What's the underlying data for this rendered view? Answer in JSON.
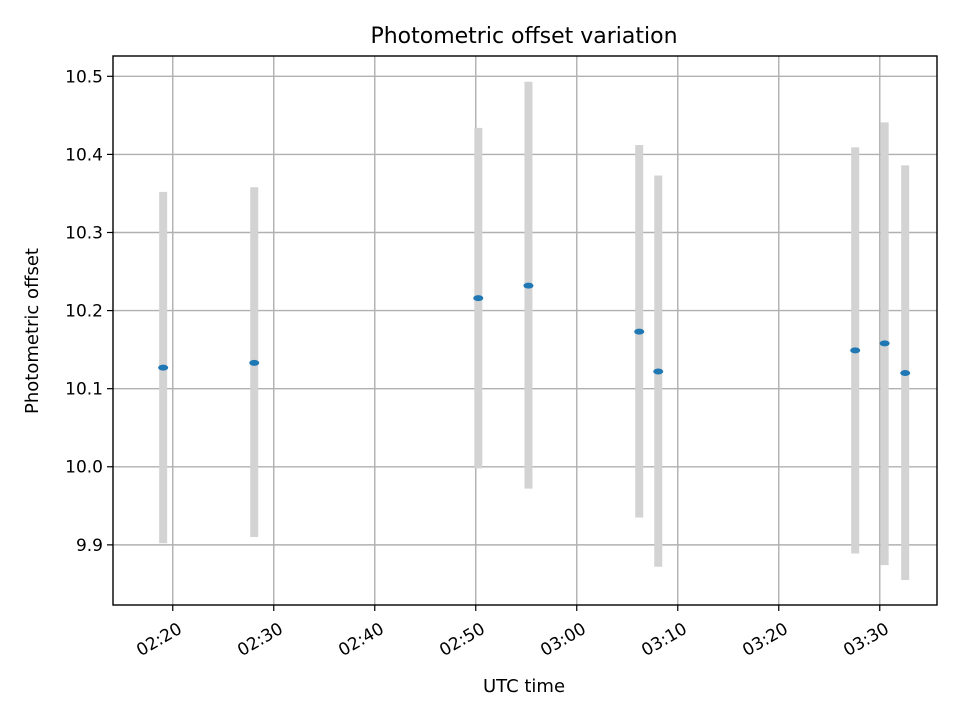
{
  "chart_data": {
    "type": "scatter",
    "title": "Photometric offset variation",
    "xlabel": "UTC time",
    "ylabel": "Photometric offset",
    "x_ticks": [
      "02:20",
      "02:30",
      "02:40",
      "02:50",
      "03:00",
      "03:10",
      "03:20",
      "03:30"
    ],
    "y_ticks": [
      "9.9",
      "10.0",
      "10.1",
      "10.2",
      "10.3",
      "10.4",
      "10.5"
    ],
    "xlim": [
      "02:14:05",
      "03:35:40"
    ],
    "ylim": [
      9.823,
      10.526
    ],
    "grid": true,
    "series": [
      {
        "points": [
          {
            "x": "02:19:03",
            "y": 10.127,
            "yerr_low": 9.902,
            "yerr_high": 10.352
          },
          {
            "x": "02:28:04",
            "y": 10.133,
            "yerr_low": 9.91,
            "yerr_high": 10.358
          },
          {
            "x": "02:50:15",
            "y": 10.216,
            "yerr_low": 9.998,
            "yerr_high": 10.434
          },
          {
            "x": "02:55:13",
            "y": 10.232,
            "yerr_low": 9.972,
            "yerr_high": 10.493
          },
          {
            "x": "03:06:11",
            "y": 10.173,
            "yerr_low": 9.935,
            "yerr_high": 10.412
          },
          {
            "x": "03:08:04",
            "y": 10.122,
            "yerr_low": 9.872,
            "yerr_high": 10.373
          },
          {
            "x": "03:27:34",
            "y": 10.149,
            "yerr_low": 9.889,
            "yerr_high": 10.409
          },
          {
            "x": "03:30:29",
            "y": 10.158,
            "yerr_low": 9.874,
            "yerr_high": 10.441
          },
          {
            "x": "03:32:31",
            "y": 10.12,
            "yerr_low": 9.855,
            "yerr_high": 10.386
          }
        ]
      }
    ],
    "colors": {
      "point": "#1f77b4",
      "errorbar": "#d3d3d3",
      "grid": "#b0b0b0"
    }
  }
}
